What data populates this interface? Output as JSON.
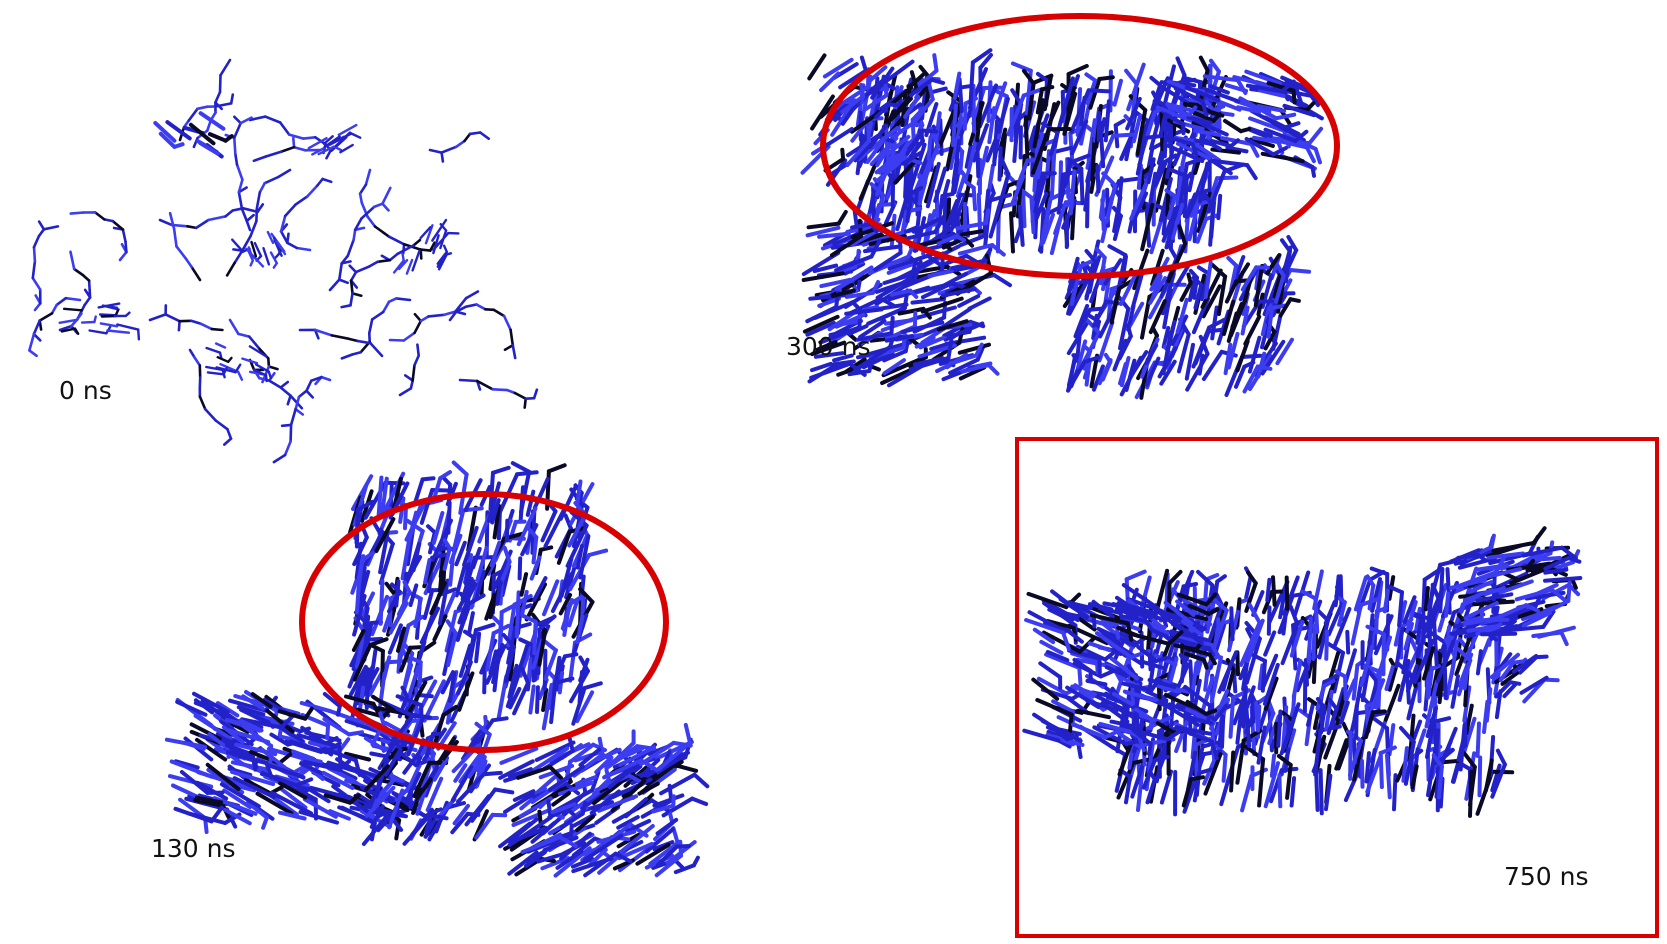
{
  "colors": {
    "molecule_blue": "#2222c8",
    "molecule_light": "#3c3cf0",
    "molecule_dark": "#0a0a26",
    "highlight_red": "#d80000"
  },
  "snapshots": [
    {
      "label": "0 ns",
      "state": "dispersed molecules"
    },
    {
      "label": "300 ns",
      "state": "aggregated stack, highlighted region"
    },
    {
      "label": "130 ns",
      "state": "aggregated stack, highlighted region"
    },
    {
      "label": "750 ns",
      "state": "aggregated stack, highlighted box"
    }
  ]
}
